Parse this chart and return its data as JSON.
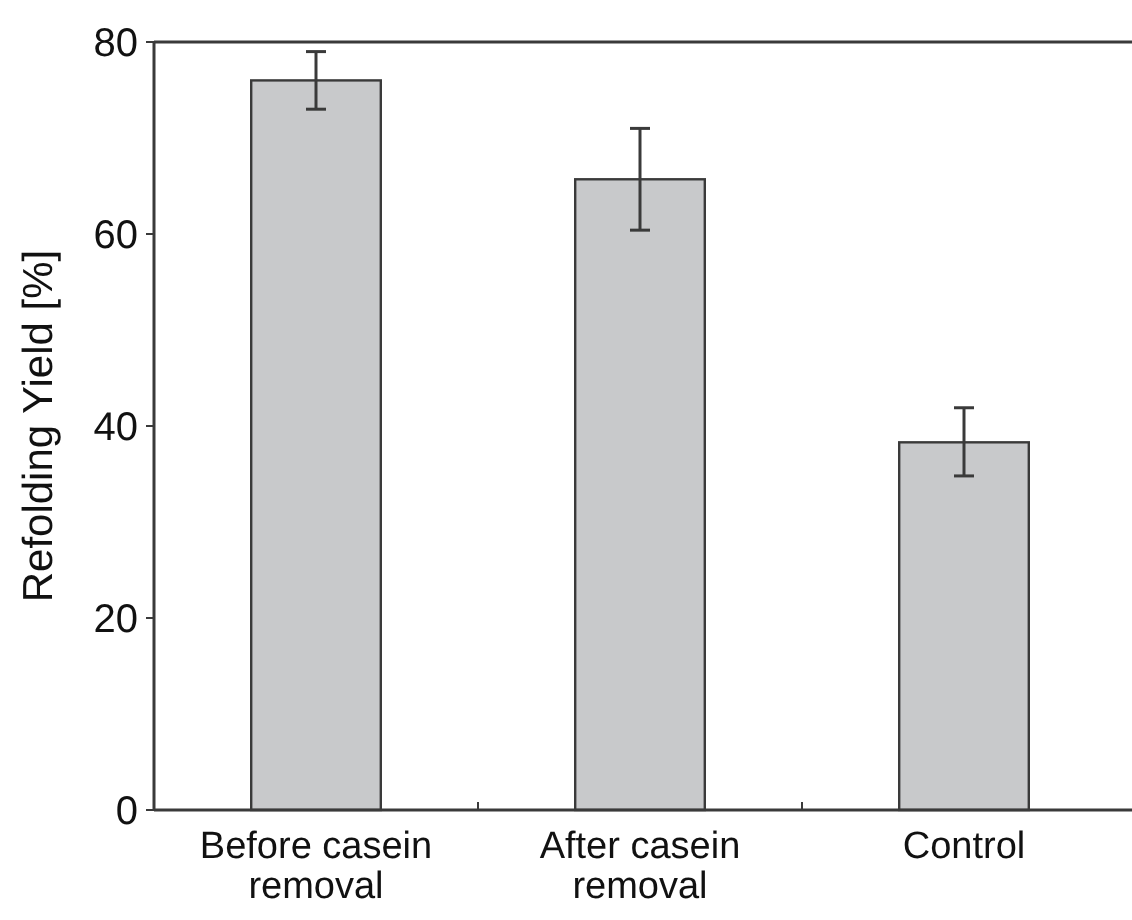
{
  "chart_data": {
    "type": "bar",
    "ylabel": "Refolding Yield [%]",
    "categories": [
      "Before casein removal",
      "After casein removal",
      "Control"
    ],
    "values": [
      76,
      65.7,
      38.3
    ],
    "errors": [
      [
        73,
        79
      ],
      [
        60.4,
        71
      ],
      [
        34.8,
        41.9
      ]
    ],
    "color": "#c8c9cb",
    "ylim": [
      0,
      80
    ],
    "yticks": [
      0,
      20,
      40,
      60,
      80
    ],
    "grid": false
  }
}
